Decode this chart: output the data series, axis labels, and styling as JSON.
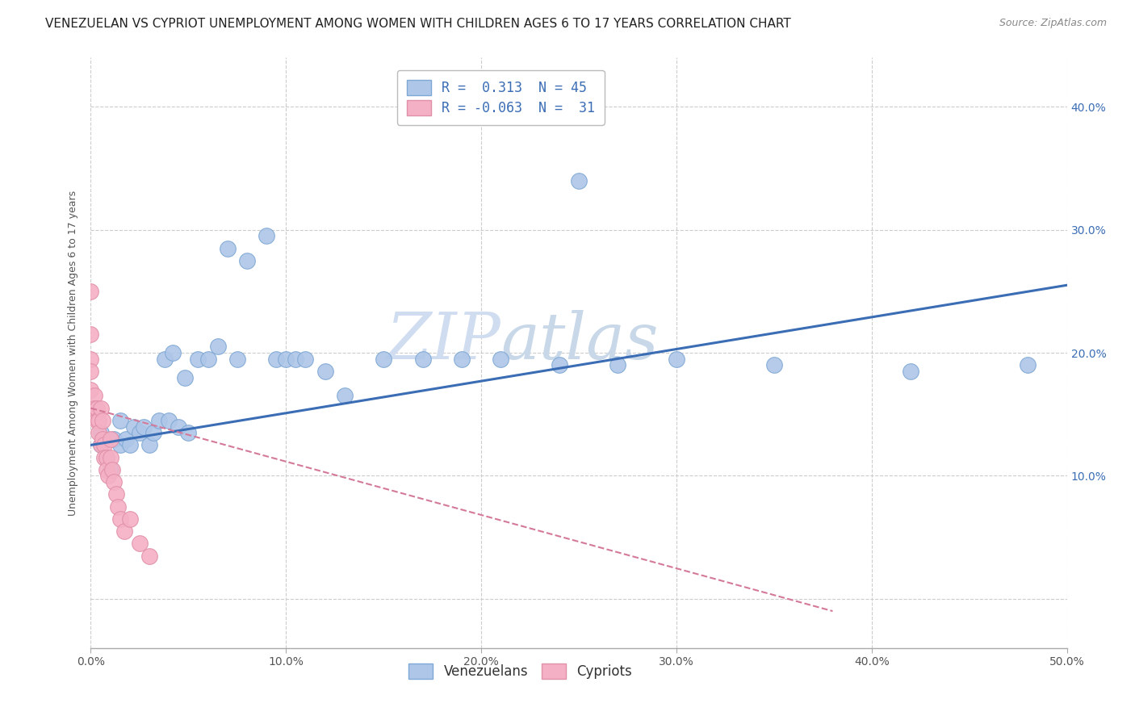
{
  "title": "VENEZUELAN VS CYPRIOT UNEMPLOYMENT AMONG WOMEN WITH CHILDREN AGES 6 TO 17 YEARS CORRELATION CHART",
  "source": "Source: ZipAtlas.com",
  "ylabel": "Unemployment Among Women with Children Ages 6 to 17 years",
  "xlim": [
    0.0,
    0.5
  ],
  "ylim": [
    -0.04,
    0.44
  ],
  "xticks": [
    0.0,
    0.1,
    0.2,
    0.3,
    0.4,
    0.5
  ],
  "yticks": [
    0.0,
    0.1,
    0.2,
    0.3,
    0.4
  ],
  "xticklabels": [
    "0.0%",
    "10.0%",
    "20.0%",
    "30.0%",
    "40.0%",
    "50.0%"
  ],
  "yticklabels_right": [
    "",
    "10.0%",
    "20.0%",
    "30.0%",
    "40.0%"
  ],
  "watermark_zip": "ZIP",
  "watermark_atlas": "atlas",
  "legend_r_ven": "R =",
  "legend_r_val_ven": "0.313",
  "legend_n_ven": "N =",
  "legend_n_val_ven": "45",
  "legend_r_cyp": "R =",
  "legend_r_val_cyp": "-0.063",
  "legend_n_cyp": "N =",
  "legend_n_val_cyp": "31",
  "venezuelan_scatter_x": [
    0.005,
    0.005,
    0.008,
    0.01,
    0.012,
    0.015,
    0.015,
    0.018,
    0.02,
    0.022,
    0.025,
    0.027,
    0.03,
    0.032,
    0.035,
    0.038,
    0.04,
    0.042,
    0.045,
    0.048,
    0.05,
    0.055,
    0.06,
    0.065,
    0.07,
    0.075,
    0.08,
    0.09,
    0.095,
    0.1,
    0.105,
    0.11,
    0.12,
    0.13,
    0.15,
    0.17,
    0.19,
    0.21,
    0.24,
    0.25,
    0.27,
    0.3,
    0.35,
    0.42,
    0.48
  ],
  "venezuelan_scatter_y": [
    0.135,
    0.125,
    0.115,
    0.105,
    0.13,
    0.145,
    0.125,
    0.13,
    0.125,
    0.14,
    0.135,
    0.14,
    0.125,
    0.135,
    0.145,
    0.195,
    0.145,
    0.2,
    0.14,
    0.18,
    0.135,
    0.195,
    0.195,
    0.205,
    0.285,
    0.195,
    0.275,
    0.295,
    0.195,
    0.195,
    0.195,
    0.195,
    0.185,
    0.165,
    0.195,
    0.195,
    0.195,
    0.195,
    0.19,
    0.34,
    0.19,
    0.195,
    0.19,
    0.185,
    0.19
  ],
  "cypriot_scatter_x": [
    0.0,
    0.0,
    0.0,
    0.0,
    0.0,
    0.002,
    0.002,
    0.003,
    0.003,
    0.004,
    0.004,
    0.005,
    0.005,
    0.006,
    0.006,
    0.007,
    0.007,
    0.008,
    0.008,
    0.009,
    0.01,
    0.01,
    0.011,
    0.012,
    0.013,
    0.014,
    0.015,
    0.017,
    0.02,
    0.025,
    0.03
  ],
  "cypriot_scatter_y": [
    0.25,
    0.215,
    0.195,
    0.185,
    0.17,
    0.165,
    0.155,
    0.155,
    0.145,
    0.145,
    0.135,
    0.155,
    0.125,
    0.145,
    0.13,
    0.125,
    0.115,
    0.115,
    0.105,
    0.1,
    0.13,
    0.115,
    0.105,
    0.095,
    0.085,
    0.075,
    0.065,
    0.055,
    0.065,
    0.045,
    0.035
  ],
  "venezuelan_line_x": [
    0.0,
    0.5
  ],
  "venezuelan_line_y": [
    0.125,
    0.255
  ],
  "cypriot_line_x": [
    0.0,
    0.38
  ],
  "cypriot_line_y": [
    0.155,
    -0.01
  ],
  "venezuelan_line_color": "#3b6db5",
  "cypriot_line_color": "#d4799a",
  "scatter_color_ven": "#aec6e8",
  "scatter_edge_ven": "#7fa8d4",
  "scatter_color_cyp": "#f4b0c4",
  "scatter_edge_cyp": "#e090a8",
  "background_color": "#ffffff",
  "grid_color": "#cccccc",
  "title_fontsize": 11,
  "axis_label_fontsize": 9,
  "tick_fontsize": 10,
  "source_fontsize": 9
}
